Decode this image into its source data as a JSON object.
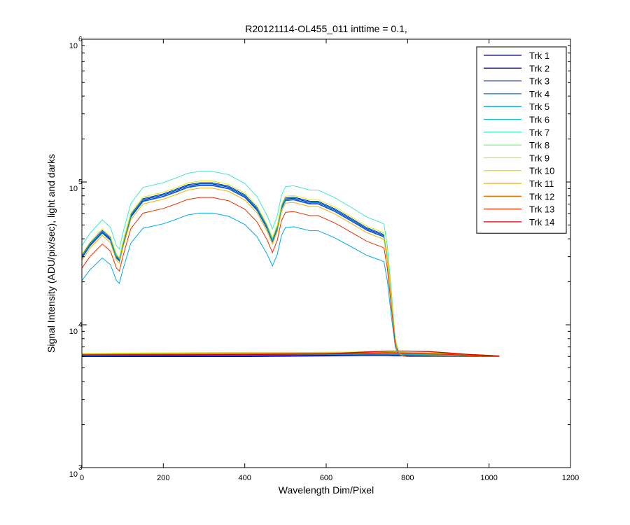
{
  "chart_data": {
    "type": "line",
    "title": "R20121114-OL455_011 inttime = 0.1,",
    "xlabel": "Wavelength Dim/Pixel",
    "ylabel": "Signal Intensity (ADU/pix/sec), light and darks",
    "xlim": [
      0,
      1200
    ],
    "ylim": [
      1000,
      1000000
    ],
    "yscale": "log",
    "grid": false,
    "legend_position": "top-right",
    "x_ticks": [
      0,
      200,
      400,
      600,
      800,
      1000,
      1200
    ],
    "x_tick_labels": [
      "0",
      "200",
      "400",
      "600",
      "800",
      "1000",
      "1200"
    ],
    "y_ticks": [
      {
        "value": 1000,
        "base": "10",
        "exp": "3"
      },
      {
        "value": 10000,
        "base": "10",
        "exp": "4"
      },
      {
        "value": 100000,
        "base": "10",
        "exp": "5"
      },
      {
        "value": 1000000,
        "base": "10",
        "exp": "6"
      }
    ],
    "light_x": [
      0,
      20,
      50,
      70,
      85,
      92,
      100,
      120,
      150,
      200,
      230,
      260,
      290,
      320,
      360,
      400,
      430,
      455,
      468,
      480,
      490,
      500,
      520,
      560,
      580,
      620,
      660,
      700,
      735,
      742,
      750,
      760,
      770,
      780,
      790,
      800,
      850,
      900,
      950,
      1000,
      1025
    ],
    "dark_x": [
      0,
      200,
      400,
      600,
      700,
      750,
      800,
      850,
      900,
      950,
      1000,
      1025
    ],
    "series": [
      {
        "name": "Trk 1",
        "color": "#00008f",
        "light": true,
        "scale": 1.0,
        "dark": [
          6000,
          6000,
          6000,
          6050,
          6100,
          6100,
          6050,
          6000,
          6000,
          6000,
          6000,
          6000
        ]
      },
      {
        "name": "Trk 2",
        "color": "#0000c0",
        "light": true,
        "scale": 1.02,
        "dark": [
          6050,
          6050,
          6050,
          6100,
          6100,
          6100,
          6050,
          6050,
          6000,
          6000,
          6000,
          6000
        ]
      },
      {
        "name": "Trk 3",
        "color": "#0030ff",
        "light": true,
        "scale": 0.98,
        "dark": [
          6050,
          6100,
          6100,
          6150,
          6150,
          6150,
          6100,
          6050,
          6050,
          6000,
          6000,
          6000
        ]
      },
      {
        "name": "Trk 4",
        "color": "#0070c0",
        "light": true,
        "scale": 0.97,
        "dark": [
          6100,
          6100,
          6150,
          6200,
          6200,
          6200,
          6150,
          6100,
          6050,
          6050,
          6000,
          6000
        ]
      },
      {
        "name": "Trk 5",
        "color": "#00a8e8",
        "light": true,
        "scale": 0.6,
        "dark": [
          6100,
          6150,
          6150,
          6200,
          6250,
          6250,
          6200,
          6150,
          6100,
          6050,
          6000,
          6000
        ]
      },
      {
        "name": "Trk 6",
        "color": "#10c8c8",
        "light": true,
        "scale": 1.01,
        "dark": [
          6150,
          6200,
          6200,
          6250,
          6300,
          6300,
          6250,
          6200,
          6150,
          6100,
          6050,
          6000
        ]
      },
      {
        "name": "Trk 7",
        "color": "#40e8d0",
        "light": true,
        "scale": 1.24,
        "dark": [
          6200,
          6250,
          6250,
          6300,
          6300,
          6300,
          6300,
          6250,
          6200,
          6100,
          6050,
          6000
        ]
      },
      {
        "name": "Trk 8",
        "color": "#80f080",
        "light": false,
        "dark": [
          6250,
          6350,
          6400,
          6400,
          6450,
          6450,
          6400,
          6350,
          6250,
          6150,
          6100,
          6050
        ]
      },
      {
        "name": "Trk 9",
        "color": "#c0f040",
        "light": false,
        "dark": [
          6300,
          6350,
          6350,
          6400,
          6450,
          6450,
          6400,
          6350,
          6300,
          6200,
          6100,
          6050
        ]
      },
      {
        "name": "Trk 10",
        "color": "#e8e800",
        "light": true,
        "scale": 1.05,
        "dark": [
          6250,
          6300,
          6350,
          6400,
          6450,
          6450,
          6400,
          6350,
          6300,
          6200,
          6100,
          6050
        ]
      },
      {
        "name": "Trk 11",
        "color": "#f0b000",
        "light": true,
        "scale": 0.93,
        "dark": [
          6200,
          6250,
          6300,
          6350,
          6400,
          6400,
          6350,
          6300,
          6250,
          6150,
          6100,
          6050
        ]
      },
      {
        "name": "Trk 12",
        "color": "#f07000",
        "light": false,
        "dark": [
          6200,
          6250,
          6250,
          6300,
          6350,
          6400,
          6350,
          6300,
          6250,
          6200,
          6100,
          6050
        ]
      },
      {
        "name": "Trk 13",
        "color": "#e03000",
        "light": true,
        "scale": 0.79,
        "dark": [
          6150,
          6200,
          6200,
          6250,
          6300,
          6350,
          6300,
          6250,
          6200,
          6100,
          6050,
          6000
        ]
      },
      {
        "name": "Trk 14",
        "color": "#d00000",
        "light": false,
        "dark": [
          6150,
          6150,
          6200,
          6250,
          6450,
          6550,
          6550,
          6500,
          6350,
          6200,
          6100,
          6050
        ]
      }
    ],
    "light_profile": [
      30000,
      36500,
      45000,
      40000,
      30000,
      28500,
      36000,
      58000,
      75000,
      81000,
      87000,
      94000,
      97000,
      97000,
      92000,
      80000,
      65000,
      48000,
      39000,
      48000,
      66000,
      76000,
      77000,
      72000,
      72000,
      64000,
      55000,
      47000,
      43000,
      42000,
      30000,
      15000,
      7500,
      6200,
      6050,
      6000,
      6000,
      6000,
      6000,
      6000,
      6000
    ]
  }
}
